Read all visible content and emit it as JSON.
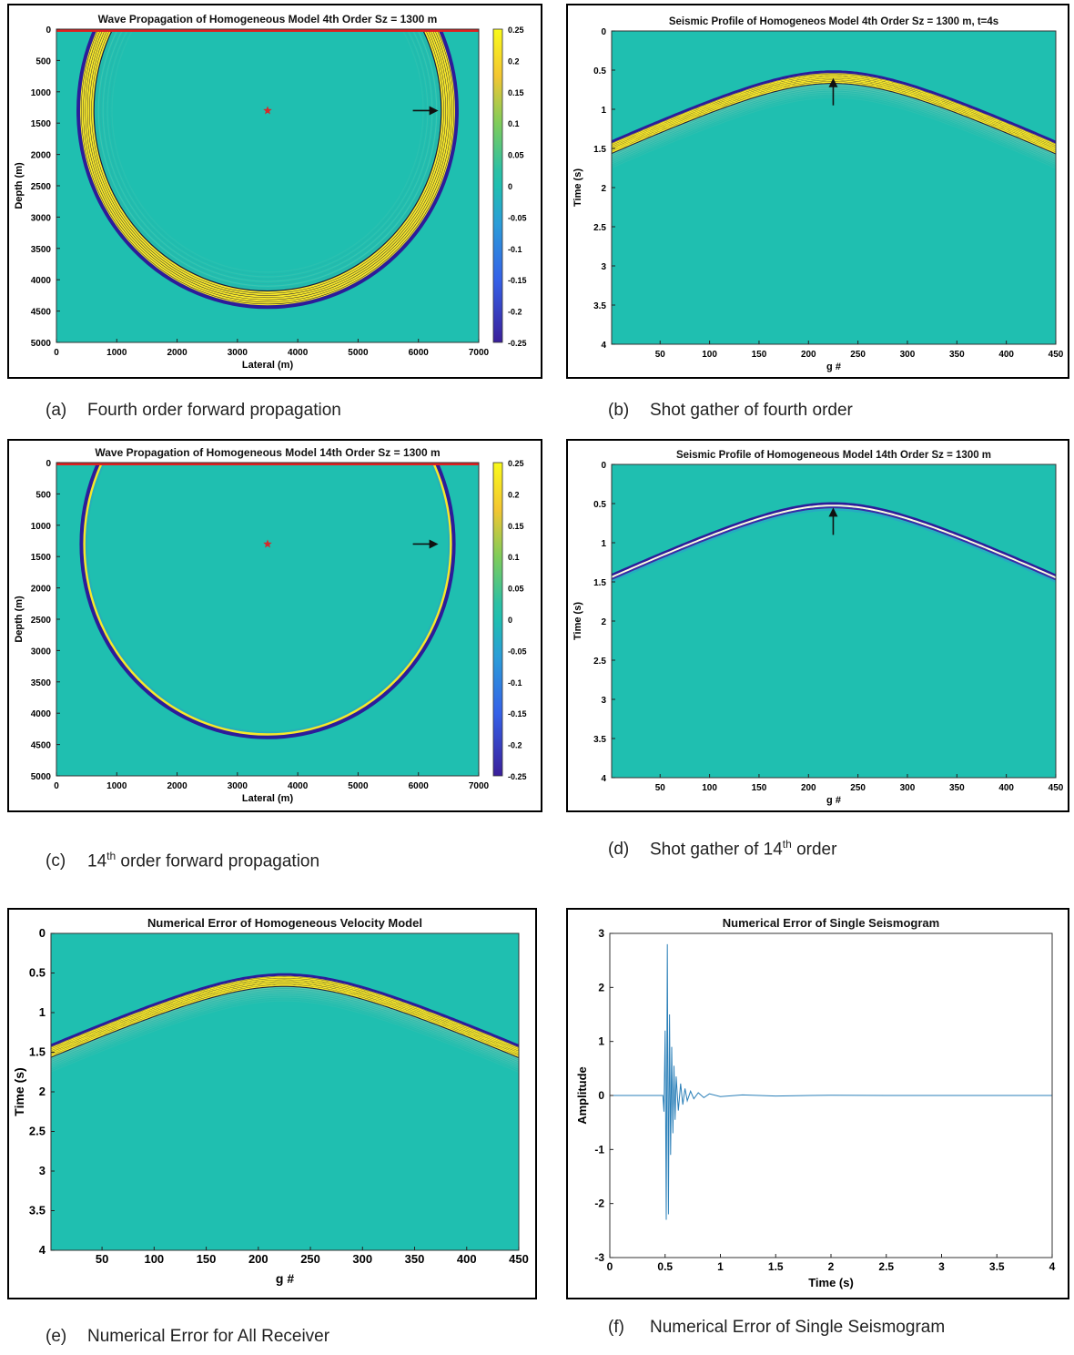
{
  "colors": {
    "background": "#1fbfb0",
    "yellow": "#f7e82a",
    "dark_blue": "#2c1c9a",
    "star": "#d42a2a",
    "receiver_line": "#e02020",
    "trace": "#2a7fb8"
  },
  "captions": {
    "a": {
      "letter": "(a)",
      "text": "Fourth order forward propagation",
      "sup": "",
      "rest": ""
    },
    "b": {
      "letter": "(b)",
      "text": "Shot gather of fourth order",
      "sup": "",
      "rest": ""
    },
    "c": {
      "letter": "(c)",
      "text": "14",
      "sup": "th",
      "rest": " order forward propagation"
    },
    "d": {
      "letter": "(d)",
      "text": "Shot gather of 14",
      "sup": "th",
      "rest": " order"
    },
    "e": {
      "letter": "(e)",
      "text": "Numerical Error for All Receiver",
      "sup": "",
      "rest": ""
    },
    "f": {
      "letter": "(f)",
      "text": "Numerical Error of Single Seismogram",
      "sup": "",
      "rest": ""
    }
  },
  "chart_data": [
    {
      "id": "a",
      "type": "heatmap",
      "title": "Wave Propagation of Homogeneous Model 4th Order Sz = 1300 m",
      "xlabel": "Lateral (m)",
      "ylabel": "Depth (m)",
      "xticks": [
        "0",
        "1000",
        "2000",
        "3000",
        "4000",
        "5000",
        "6000",
        "7000"
      ],
      "yticks": [
        "0",
        "500",
        "1000",
        "1500",
        "2000",
        "2500",
        "3000",
        "3500",
        "4000",
        "4500",
        "5000"
      ],
      "xlim": [
        0,
        7000
      ],
      "ylim": [
        0,
        5000
      ],
      "colorbar": {
        "ticks": [
          "0.25",
          "0.2",
          "0.15",
          "0.1",
          "0.05",
          "0",
          "-0.05",
          "-0.1",
          "-0.15",
          "-0.2",
          "-0.25"
        ],
        "range": [
          -0.25,
          0.25
        ]
      },
      "source": {
        "x": 3500,
        "z": 1300
      },
      "wavefront_radius": 3100,
      "wavefront_rings": 7,
      "arrow_at": {
        "x": 6300,
        "z": 1300
      }
    },
    {
      "id": "b",
      "type": "heatmap",
      "title": "Seismic Profile of Homogeneos Model 4th Order Sz = 1300 m, t=4s",
      "xlabel": "g #",
      "ylabel": "Time (s)",
      "xticks": [
        "50",
        "100",
        "150",
        "200",
        "250",
        "300",
        "350",
        "400",
        "450"
      ],
      "yticks": [
        "0",
        "0.5",
        "1",
        "1.5",
        "2",
        "2.5",
        "3",
        "3.5",
        "4"
      ],
      "xlim": [
        1,
        450
      ],
      "ylim": [
        0,
        4
      ],
      "apex": {
        "g": 225,
        "t": 0.52
      },
      "edge_time": 1.42,
      "wavefront_rings": 7,
      "arrow_at": {
        "g": 225,
        "t": 0.95
      }
    },
    {
      "id": "c",
      "type": "heatmap",
      "title": "Wave Propagation of Homogeneous Model 14th Order Sz = 1300 m",
      "xlabel": "Lateral (m)",
      "ylabel": "Depth (m)",
      "xticks": [
        "0",
        "1000",
        "2000",
        "3000",
        "4000",
        "5000",
        "6000",
        "7000"
      ],
      "yticks": [
        "0",
        "500",
        "1000",
        "1500",
        "2000",
        "2500",
        "3000",
        "3500",
        "4000",
        "4500",
        "5000"
      ],
      "xlim": [
        0,
        7000
      ],
      "ylim": [
        0,
        5000
      ],
      "colorbar": {
        "ticks": [
          "0.25",
          "0.2",
          "0.15",
          "0.1",
          "0.05",
          "0",
          "-0.05",
          "-0.1",
          "-0.15",
          "-0.2",
          "-0.25"
        ],
        "range": [
          -0.25,
          0.25
        ]
      },
      "source": {
        "x": 3500,
        "z": 1300
      },
      "wavefront_radius": 3050,
      "wavefront_rings": 1,
      "arrow_at": {
        "x": 6300,
        "z": 1300
      }
    },
    {
      "id": "d",
      "type": "heatmap",
      "title": "Seismic Profile of Homogeneous Model 14th Order Sz = 1300 m",
      "xlabel": "g #",
      "ylabel": "Time (s)",
      "xticks": [
        "50",
        "100",
        "150",
        "200",
        "250",
        "300",
        "350",
        "400",
        "450"
      ],
      "yticks": [
        "0",
        "0.5",
        "1",
        "1.5",
        "2",
        "2.5",
        "3",
        "3.5",
        "4"
      ],
      "xlim": [
        1,
        450
      ],
      "ylim": [
        0,
        4
      ],
      "apex": {
        "g": 225,
        "t": 0.5
      },
      "edge_time": 1.42,
      "wavefront_rings": 1,
      "arrow_at": {
        "g": 225,
        "t": 0.9
      }
    },
    {
      "id": "e",
      "type": "heatmap",
      "title": "Numerical Error of Homogeneous Velocity Model",
      "xlabel": "g #",
      "ylabel": "Time (s)",
      "xticks": [
        "50",
        "100",
        "150",
        "200",
        "250",
        "300",
        "350",
        "400",
        "450"
      ],
      "yticks": [
        "0",
        "0.5",
        "1",
        "1.5",
        "2",
        "2.5",
        "3",
        "3.5",
        "4"
      ],
      "xlim": [
        1,
        450
      ],
      "ylim": [
        0,
        4
      ],
      "apex": {
        "g": 225,
        "t": 0.52
      },
      "edge_time": 1.42,
      "wavefront_rings": 7
    },
    {
      "id": "f",
      "type": "line",
      "title": "Numerical Error of Single Seismogram",
      "xlabel": "Time (s)",
      "ylabel": "Amplitude",
      "xticks": [
        "0",
        "0.5",
        "1",
        "1.5",
        "2",
        "2.5",
        "3",
        "3.5",
        "4"
      ],
      "yticks": [
        "3",
        "2",
        "1",
        "0",
        "-1",
        "-2",
        "-3"
      ],
      "xlim": [
        0,
        4
      ],
      "ylim": [
        -3,
        3
      ],
      "series": [
        {
          "x": [
            0,
            0.48,
            0.49,
            0.5,
            0.51,
            0.52,
            0.53,
            0.54,
            0.55,
            0.56,
            0.57,
            0.58,
            0.59,
            0.6,
            0.62,
            0.64,
            0.66,
            0.68,
            0.7,
            0.73,
            0.76,
            0.8,
            0.85,
            0.9,
            1.0,
            1.2,
            1.5,
            2.0,
            2.5,
            3.0,
            3.5,
            4.0
          ],
          "y": [
            0,
            0,
            -0.3,
            1.2,
            -2.3,
            2.8,
            -2.2,
            1.5,
            -1.1,
            0.9,
            -0.7,
            0.55,
            -0.45,
            0.35,
            -0.28,
            0.22,
            -0.17,
            0.13,
            -0.1,
            0.08,
            -0.06,
            0.05,
            -0.04,
            0.03,
            -0.02,
            0.01,
            -0.01,
            0.005,
            0,
            0,
            0,
            0
          ]
        }
      ]
    }
  ]
}
